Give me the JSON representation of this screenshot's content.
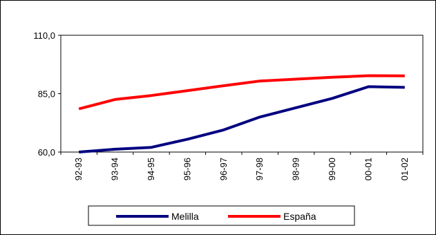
{
  "chart_data": {
    "type": "line",
    "categories": [
      "92-93",
      "93-94",
      "94-95",
      "95-96",
      "96-97",
      "97-98",
      "98-99",
      "99-00",
      "00-01",
      "01-02"
    ],
    "y_ticks": [
      "60,0",
      "85,0",
      "110,0"
    ],
    "ylim": [
      60,
      110
    ],
    "grid": false,
    "legend_position": "bottom",
    "series": [
      {
        "name": "Melilla",
        "color": "#000080",
        "values": [
          59.0,
          61.2,
          62.0,
          65.5,
          69.5,
          75.0,
          79.0,
          83.0,
          88.0,
          87.7
        ]
      },
      {
        "name": "España",
        "color": "#ff0000",
        "values": [
          78.5,
          82.5,
          84.2,
          86.3,
          88.4,
          90.4,
          91.2,
          92.0,
          92.7,
          92.6
        ]
      }
    ]
  }
}
